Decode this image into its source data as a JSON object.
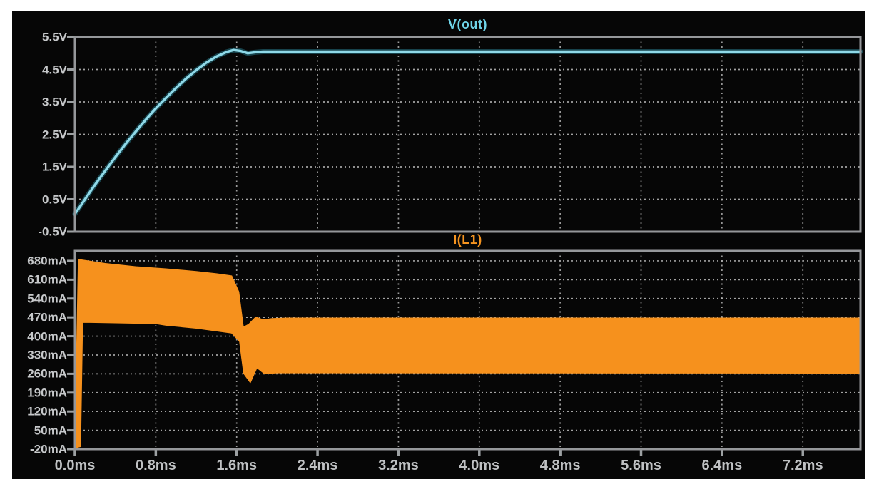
{
  "window": {
    "frame_background": "#ffffff",
    "panel_background": "#060606",
    "pane_border_color": "#95979a",
    "grid_color": "#b4b4b4",
    "tick_color": "#9da1a3",
    "axis_label_color": "#c6c8ca"
  },
  "chart_data": [
    {
      "id": "vout",
      "type": "line",
      "title": "V(out)",
      "title_color": "#6fd4e8",
      "trace_color": "#8fd9e8",
      "trace_halo_color": "#17434c",
      "x_range_ms": [
        0,
        7.77
      ],
      "y_range": [
        -0.5,
        5.5
      ],
      "x_gridlines_ms": [
        0.8,
        1.6,
        2.4,
        3.2,
        4.0,
        4.8,
        5.6,
        6.4,
        7.2
      ],
      "y_axis": {
        "unit": "V",
        "ticks": [
          {
            "label": "5.5V",
            "value": 5.5,
            "grid": false
          },
          {
            "label": "4.5V",
            "value": 4.5,
            "grid": true
          },
          {
            "label": "3.5V",
            "value": 3.5,
            "grid": true
          },
          {
            "label": "2.5V",
            "value": 2.5,
            "grid": true
          },
          {
            "label": "1.5V",
            "value": 1.5,
            "grid": true
          },
          {
            "label": "0.5V",
            "value": 0.5,
            "grid": true
          },
          {
            "label": "-0.5V",
            "value": -0.5,
            "grid": false
          }
        ]
      },
      "series": [
        {
          "name": "V(out)",
          "points_ms_V": [
            [
              0.0,
              0.05
            ],
            [
              0.05,
              0.27
            ],
            [
              0.1,
              0.5
            ],
            [
              0.15,
              0.73
            ],
            [
              0.2,
              0.95
            ],
            [
              0.3,
              1.38
            ],
            [
              0.4,
              1.8
            ],
            [
              0.5,
              2.2
            ],
            [
              0.6,
              2.58
            ],
            [
              0.7,
              2.95
            ],
            [
              0.8,
              3.3
            ],
            [
              0.9,
              3.62
            ],
            [
              1.0,
              3.93
            ],
            [
              1.1,
              4.22
            ],
            [
              1.2,
              4.48
            ],
            [
              1.3,
              4.71
            ],
            [
              1.4,
              4.9
            ],
            [
              1.5,
              5.04
            ],
            [
              1.57,
              5.1
            ],
            [
              1.64,
              5.07
            ],
            [
              1.71,
              5.0
            ],
            [
              1.78,
              5.03
            ],
            [
              1.86,
              5.05
            ],
            [
              2.2,
              5.05
            ],
            [
              7.77,
              5.05
            ]
          ]
        }
      ]
    },
    {
      "id": "il1",
      "type": "area",
      "title": "I(L1)",
      "title_color": "#f6941f",
      "fill_color": "#f6911d",
      "x_range_ms": [
        0,
        7.77
      ],
      "y_range": [
        -20,
        717
      ],
      "x_gridlines_ms": [
        0.8,
        1.6,
        2.4,
        3.2,
        4.0,
        4.8,
        5.6,
        6.4,
        7.2
      ],
      "y_axis": {
        "unit": "mA",
        "ticks": [
          {
            "label": "680mA",
            "value": 680,
            "grid": true
          },
          {
            "label": "610mA",
            "value": 610,
            "grid": true
          },
          {
            "label": "540mA",
            "value": 540,
            "grid": true
          },
          {
            "label": "470mA",
            "value": 470,
            "grid": true
          },
          {
            "label": "400mA",
            "value": 400,
            "grid": true
          },
          {
            "label": "330mA",
            "value": 330,
            "grid": true
          },
          {
            "label": "260mA",
            "value": 260,
            "grid": true
          },
          {
            "label": "190mA",
            "value": 190,
            "grid": true
          },
          {
            "label": "120mA",
            "value": 120,
            "grid": true
          },
          {
            "label": "50mA",
            "value": 50,
            "grid": true
          },
          {
            "label": "-20mA",
            "value": -20,
            "grid": false
          }
        ]
      },
      "x_axis": {
        "unit": "ms",
        "ticks": [
          {
            "label": "0.0ms",
            "value": 0.0
          },
          {
            "label": "0.8ms",
            "value": 0.8
          },
          {
            "label": "1.6ms",
            "value": 1.6
          },
          {
            "label": "2.4ms",
            "value": 2.4
          },
          {
            "label": "3.2ms",
            "value": 3.2
          },
          {
            "label": "4.0ms",
            "value": 4.0
          },
          {
            "label": "4.8ms",
            "value": 4.8
          },
          {
            "label": "5.6ms",
            "value": 5.6
          },
          {
            "label": "6.4ms",
            "value": 6.4
          },
          {
            "label": "7.2ms",
            "value": 7.2
          }
        ]
      },
      "series": [
        {
          "name": "I(L1) ripple envelope",
          "envelope_top_ms_mA": [
            [
              0.0,
              -15
            ],
            [
              0.035,
              685
            ],
            [
              0.3,
              670
            ],
            [
              0.6,
              658
            ],
            [
              0.9,
              650
            ],
            [
              1.2,
              640
            ],
            [
              1.4,
              632
            ],
            [
              1.55,
              624
            ],
            [
              1.62,
              565
            ],
            [
              1.665,
              433
            ],
            [
              1.72,
              444
            ],
            [
              1.79,
              471
            ],
            [
              1.86,
              461
            ],
            [
              1.95,
              465
            ],
            [
              2.1,
              467
            ],
            [
              7.77,
              467
            ]
          ],
          "envelope_bottom_ms_mA": [
            [
              0.0,
              -15
            ],
            [
              0.055,
              -10
            ],
            [
              0.075,
              452
            ],
            [
              0.4,
              450
            ],
            [
              0.8,
              447
            ],
            [
              0.9,
              441
            ],
            [
              1.2,
              430
            ],
            [
              1.55,
              412
            ],
            [
              1.63,
              380
            ],
            [
              1.67,
              262
            ],
            [
              1.735,
              228
            ],
            [
              1.8,
              283
            ],
            [
              1.875,
              261
            ],
            [
              2.0,
              264
            ],
            [
              7.77,
              263
            ]
          ]
        }
      ]
    }
  ]
}
